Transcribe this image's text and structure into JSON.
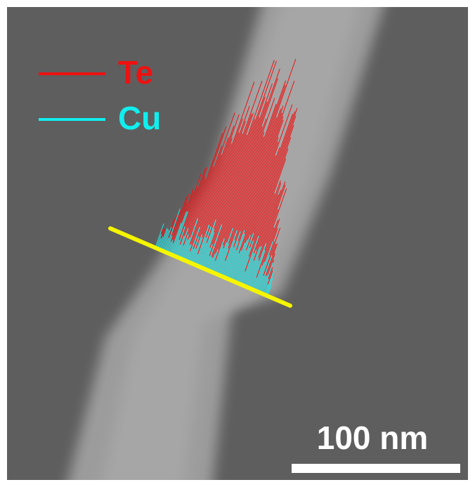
{
  "legend": [
    {
      "label": "Te",
      "color": "#ee1111"
    },
    {
      "label": "Cu",
      "color": "#11eeee"
    }
  ],
  "scan_line_color": "#f5f500",
  "scale_bar": {
    "label": "100 nm",
    "color": "#ffffff"
  }
}
